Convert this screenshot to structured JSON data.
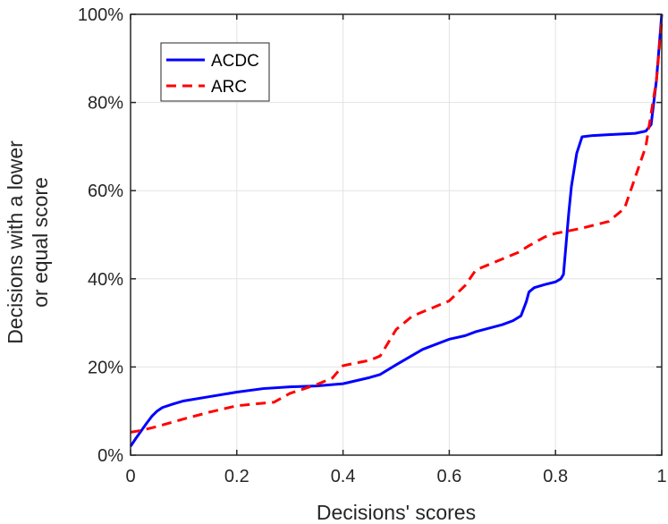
{
  "chart_data": {
    "type": "line",
    "title": "",
    "xlabel": "Decisions' scores",
    "ylabel_lines": [
      "Decisions with a lower",
      "or equal score"
    ],
    "xlim": [
      0,
      1
    ],
    "ylim": [
      0,
      100
    ],
    "grid": true,
    "legend_position": "top-left",
    "x_ticks": [
      0,
      0.2,
      0.4,
      0.6,
      0.8,
      1
    ],
    "x_tick_labels": [
      "0",
      "0.2",
      "0.4",
      "0.6",
      "0.8",
      "1"
    ],
    "y_ticks": [
      0,
      20,
      40,
      60,
      80,
      100
    ],
    "y_tick_labels": [
      "0%",
      "20%",
      "40%",
      "60%",
      "80%",
      "100%"
    ],
    "series": [
      {
        "name": "ACDC",
        "color": "#0000ff",
        "style": "solid",
        "x": [
          0,
          0.01,
          0.02,
          0.03,
          0.04,
          0.05,
          0.06,
          0.08,
          0.1,
          0.15,
          0.2,
          0.25,
          0.3,
          0.35,
          0.4,
          0.45,
          0.47,
          0.5,
          0.55,
          0.6,
          0.63,
          0.65,
          0.7,
          0.72,
          0.735,
          0.745,
          0.75,
          0.76,
          0.78,
          0.8,
          0.81,
          0.815,
          0.82,
          0.825,
          0.83,
          0.84,
          0.85,
          0.87,
          0.9,
          0.95,
          0.97,
          0.98,
          0.99,
          1.0
        ],
        "y": [
          2,
          3.8,
          5.5,
          7.2,
          8.8,
          10.0,
          10.8,
          11.6,
          12.3,
          13.3,
          14.3,
          15.1,
          15.5,
          15.7,
          16.2,
          17.6,
          18.3,
          20.5,
          24.0,
          26.3,
          27.1,
          28.0,
          29.6,
          30.5,
          31.6,
          34.8,
          37.0,
          38.0,
          38.7,
          39.3,
          40.0,
          41.0,
          48.0,
          55.0,
          61.0,
          68.5,
          72.2,
          72.5,
          72.7,
          73.0,
          73.5,
          75.0,
          85.0,
          100
        ]
      },
      {
        "name": "ARC",
        "color": "#ff0000",
        "style": "dashed",
        "x": [
          0,
          0.02,
          0.05,
          0.1,
          0.15,
          0.2,
          0.25,
          0.27,
          0.3,
          0.35,
          0.38,
          0.4,
          0.42,
          0.45,
          0.47,
          0.5,
          0.53,
          0.57,
          0.6,
          0.63,
          0.65,
          0.7,
          0.73,
          0.75,
          0.78,
          0.8,
          0.83,
          0.85,
          0.9,
          0.93,
          0.95,
          0.97,
          0.99,
          1.0
        ],
        "y": [
          5.2,
          5.6,
          6.5,
          8.2,
          9.8,
          11.2,
          11.8,
          12.0,
          14.0,
          16.0,
          17.5,
          20.3,
          20.8,
          21.5,
          22.5,
          28.5,
          31.5,
          33.5,
          35.0,
          38.5,
          42.0,
          44.5,
          46.0,
          47.5,
          49.5,
          50.3,
          51.0,
          51.5,
          53.0,
          56.0,
          63.0,
          70.0,
          85.0,
          98.5
        ]
      }
    ]
  }
}
